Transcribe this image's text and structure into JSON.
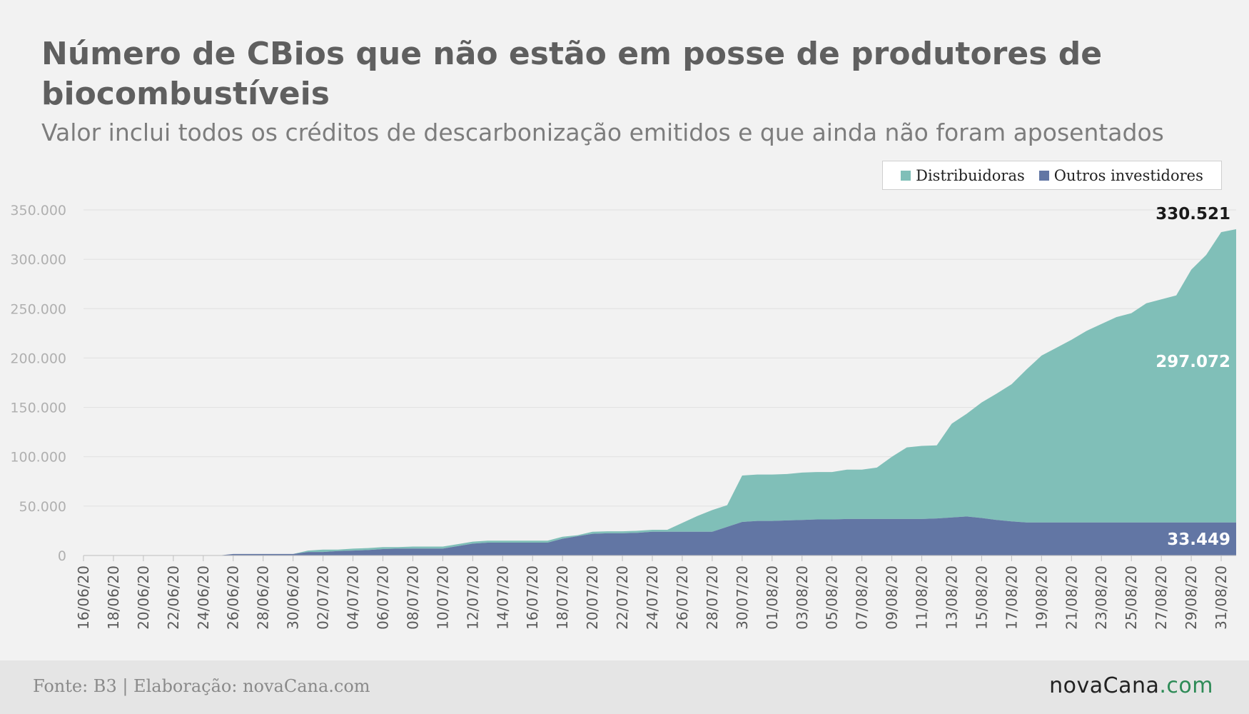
{
  "header": {
    "title": "Número de CBios que não estão em posse de  produtores de biocombustíveis",
    "subtitle": "Valor inclui todos os créditos de descarbonização emitidos e que ainda não foram aposentados"
  },
  "footer": {
    "source": "Fonte: B3 | Elaboração: novaCana.com",
    "brand_name": "novaCana",
    "brand_tld": ".com"
  },
  "chart_data": {
    "type": "area",
    "stacked": true,
    "title": "Número de CBios que não estão em posse de  produtores de biocombustíveis",
    "subtitle": "Valor inclui todos os créditos de descarbonização emitidos e que ainda não foram aposentados",
    "ylim": [
      0,
      350000
    ],
    "yticks": [
      0,
      50000,
      100000,
      150000,
      200000,
      250000,
      300000,
      350000
    ],
    "ytick_labels": [
      "0",
      "50.000",
      "100.000",
      "150.000",
      "200.000",
      "250.000",
      "300.000",
      "350.000"
    ],
    "xtick_labels": [
      "16/06/20",
      "18/06/20",
      "20/06/20",
      "22/06/20",
      "24/06/20",
      "26/06/20",
      "28/06/20",
      "30/06/20",
      "02/07/20",
      "04/07/20",
      "06/07/20",
      "08/07/20",
      "10/07/20",
      "12/07/20",
      "14/07/20",
      "16/07/20",
      "18/07/20",
      "20/07/20",
      "22/07/20",
      "24/07/20",
      "26/07/20",
      "28/07/20",
      "30/07/20",
      "01/08/20",
      "03/08/20",
      "05/08/20",
      "07/08/20",
      "09/08/20",
      "11/08/20",
      "13/08/20",
      "15/08/20",
      "17/08/20",
      "19/08/20",
      "21/08/20",
      "23/08/20",
      "25/08/20",
      "27/08/20",
      "29/08/20",
      "31/08/20"
    ],
    "grid": true,
    "legend_position": "top-right",
    "x": [
      "16/06/20",
      "17/06/20",
      "18/06/20",
      "19/06/20",
      "20/06/20",
      "21/06/20",
      "22/06/20",
      "23/06/20",
      "24/06/20",
      "25/06/20",
      "26/06/20",
      "27/06/20",
      "28/06/20",
      "29/06/20",
      "30/06/20",
      "01/07/20",
      "02/07/20",
      "03/07/20",
      "04/07/20",
      "05/07/20",
      "06/07/20",
      "07/07/20",
      "08/07/20",
      "09/07/20",
      "10/07/20",
      "11/07/20",
      "12/07/20",
      "13/07/20",
      "14/07/20",
      "15/07/20",
      "16/07/20",
      "17/07/20",
      "18/07/20",
      "19/07/20",
      "20/07/20",
      "21/07/20",
      "22/07/20",
      "23/07/20",
      "24/07/20",
      "25/07/20",
      "26/07/20",
      "27/07/20",
      "28/07/20",
      "29/07/20",
      "30/07/20",
      "31/07/20",
      "01/08/20",
      "02/08/20",
      "03/08/20",
      "04/08/20",
      "05/08/20",
      "06/08/20",
      "07/08/20",
      "08/08/20",
      "09/08/20",
      "10/08/20",
      "11/08/20",
      "12/08/20",
      "13/08/20",
      "14/08/20",
      "15/08/20",
      "16/08/20",
      "17/08/20",
      "18/08/20",
      "19/08/20",
      "20/08/20",
      "21/08/20",
      "22/08/20",
      "23/08/20",
      "24/08/20",
      "25/08/20",
      "26/08/20",
      "27/08/20",
      "28/08/20",
      "29/08/20",
      "30/08/20",
      "31/08/20",
      "01/09/20"
    ],
    "series": [
      {
        "name": "Outros investidores",
        "color": "#6276a4",
        "values": [
          0,
          0,
          0,
          0,
          0,
          0,
          0,
          0,
          0,
          0,
          1500,
          1500,
          1500,
          1500,
          1500,
          3500,
          3500,
          4500,
          5000,
          5500,
          6500,
          7000,
          7000,
          7000,
          7000,
          9500,
          12000,
          13000,
          13000,
          13000,
          13000,
          13000,
          17000,
          19500,
          22000,
          22500,
          22500,
          23000,
          24000,
          24000,
          24000,
          24000,
          24000,
          29000,
          34000,
          35000,
          35000,
          35500,
          36000,
          36500,
          36500,
          37000,
          37000,
          37000,
          37000,
          37000,
          37000,
          37500,
          38500,
          39500,
          38000,
          36000,
          34500,
          33449,
          33449,
          33449,
          33449,
          33449,
          33449,
          33449,
          33449,
          33449,
          33449,
          33449,
          33449,
          33449,
          33449,
          33449
        ]
      },
      {
        "name": "Distribuidoras",
        "color": "#80bfb8",
        "values": [
          0,
          0,
          0,
          0,
          0,
          0,
          0,
          0,
          0,
          0,
          0,
          0,
          0,
          0,
          0,
          1500,
          2500,
          1500,
          2000,
          2000,
          2000,
          1500,
          2000,
          2000,
          2000,
          2000,
          2000,
          2000,
          2000,
          2000,
          2000,
          2000,
          2000,
          1000,
          2000,
          2000,
          2000,
          2000,
          2000,
          2000,
          9000,
          16000,
          22000,
          22000,
          47000,
          47000,
          47000,
          47000,
          48000,
          48000,
          48000,
          50000,
          50000,
          52000,
          63000,
          72500,
          74000,
          74000,
          95000,
          104000,
          117000,
          128000,
          139000,
          155000,
          169000,
          177000,
          185000,
          194000,
          201000,
          208000,
          212000,
          222000,
          226000,
          230000,
          256000,
          271000,
          294000,
          297072
        ]
      }
    ],
    "data_labels": [
      {
        "label": "330.521",
        "series": "total",
        "x": "01/09/20",
        "value": 330521
      },
      {
        "label": "297.072",
        "series": "Distribuidoras",
        "x": "01/09/20",
        "value": 297072
      },
      {
        "label": "33.449",
        "series": "Outros investidores",
        "x": "01/09/20",
        "value": 33449
      }
    ]
  }
}
